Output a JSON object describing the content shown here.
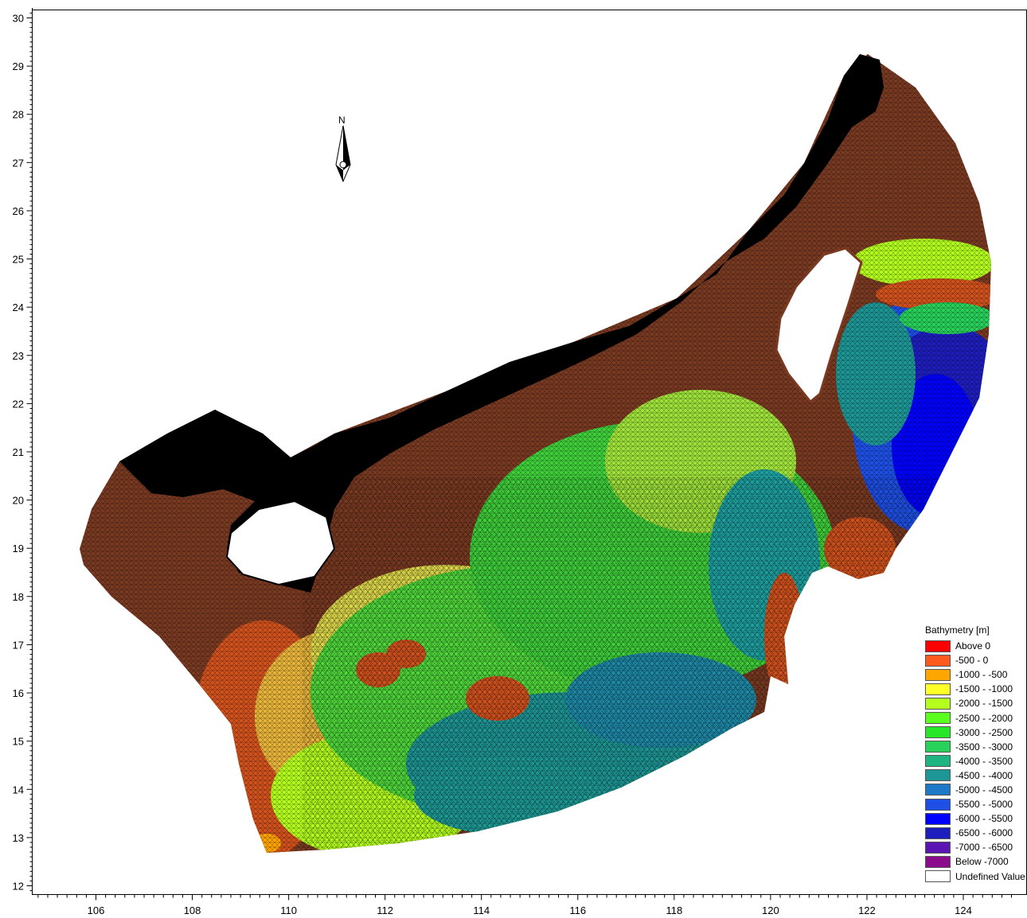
{
  "map": {
    "north_label": "N",
    "x_ticks": [
      "106",
      "108",
      "110",
      "112",
      "114",
      "116",
      "118",
      "120",
      "122",
      "124"
    ],
    "y_ticks": [
      "12",
      "13",
      "14",
      "15",
      "16",
      "17",
      "18",
      "19",
      "20",
      "21",
      "22",
      "23",
      "24",
      "25",
      "26",
      "27",
      "28",
      "29",
      "30"
    ],
    "x_range": [
      104.6,
      125.3
    ],
    "y_range": [
      11.85,
      30.2
    ]
  },
  "legend": {
    "title": "Bathymetry [m]",
    "items": [
      {
        "label": "Above      0",
        "color": "#ff0000"
      },
      {
        "label": "  -500 -      0",
        "color": "#ff5a1e"
      },
      {
        "label": "-1000 -  -500",
        "color": "#ffa500"
      },
      {
        "label": "-1500 - -1000",
        "color": "#ffff28"
      },
      {
        "label": "-2000 - -1500",
        "color": "#b4ff1e"
      },
      {
        "label": "-2500 - -2000",
        "color": "#5aff1e"
      },
      {
        "label": "-3000 - -2500",
        "color": "#28e628"
      },
      {
        "label": "-3500 - -3000",
        "color": "#28d25a"
      },
      {
        "label": "-4000 - -3500",
        "color": "#1eb482"
      },
      {
        "label": "-4500 - -4000",
        "color": "#1e9696"
      },
      {
        "label": "-5000 - -4500",
        "color": "#1e78c8"
      },
      {
        "label": "-5500 - -5000",
        "color": "#1e50e6"
      },
      {
        "label": "-6000 - -5500",
        "color": "#0000ff"
      },
      {
        "label": "-6500 - -6000",
        "color": "#1e1ebe"
      },
      {
        "label": "-7000 - -6500",
        "color": "#5a14b4"
      },
      {
        "label": "Below  -7000",
        "color": "#8c0a8c"
      },
      {
        "label": "Undefined Value",
        "color": "#ffffff"
      }
    ]
  },
  "colors": {
    "land_coast": "#000000",
    "shelf": "#7a3a22",
    "shallow": "#d2521e",
    "background": "#ffffff"
  }
}
